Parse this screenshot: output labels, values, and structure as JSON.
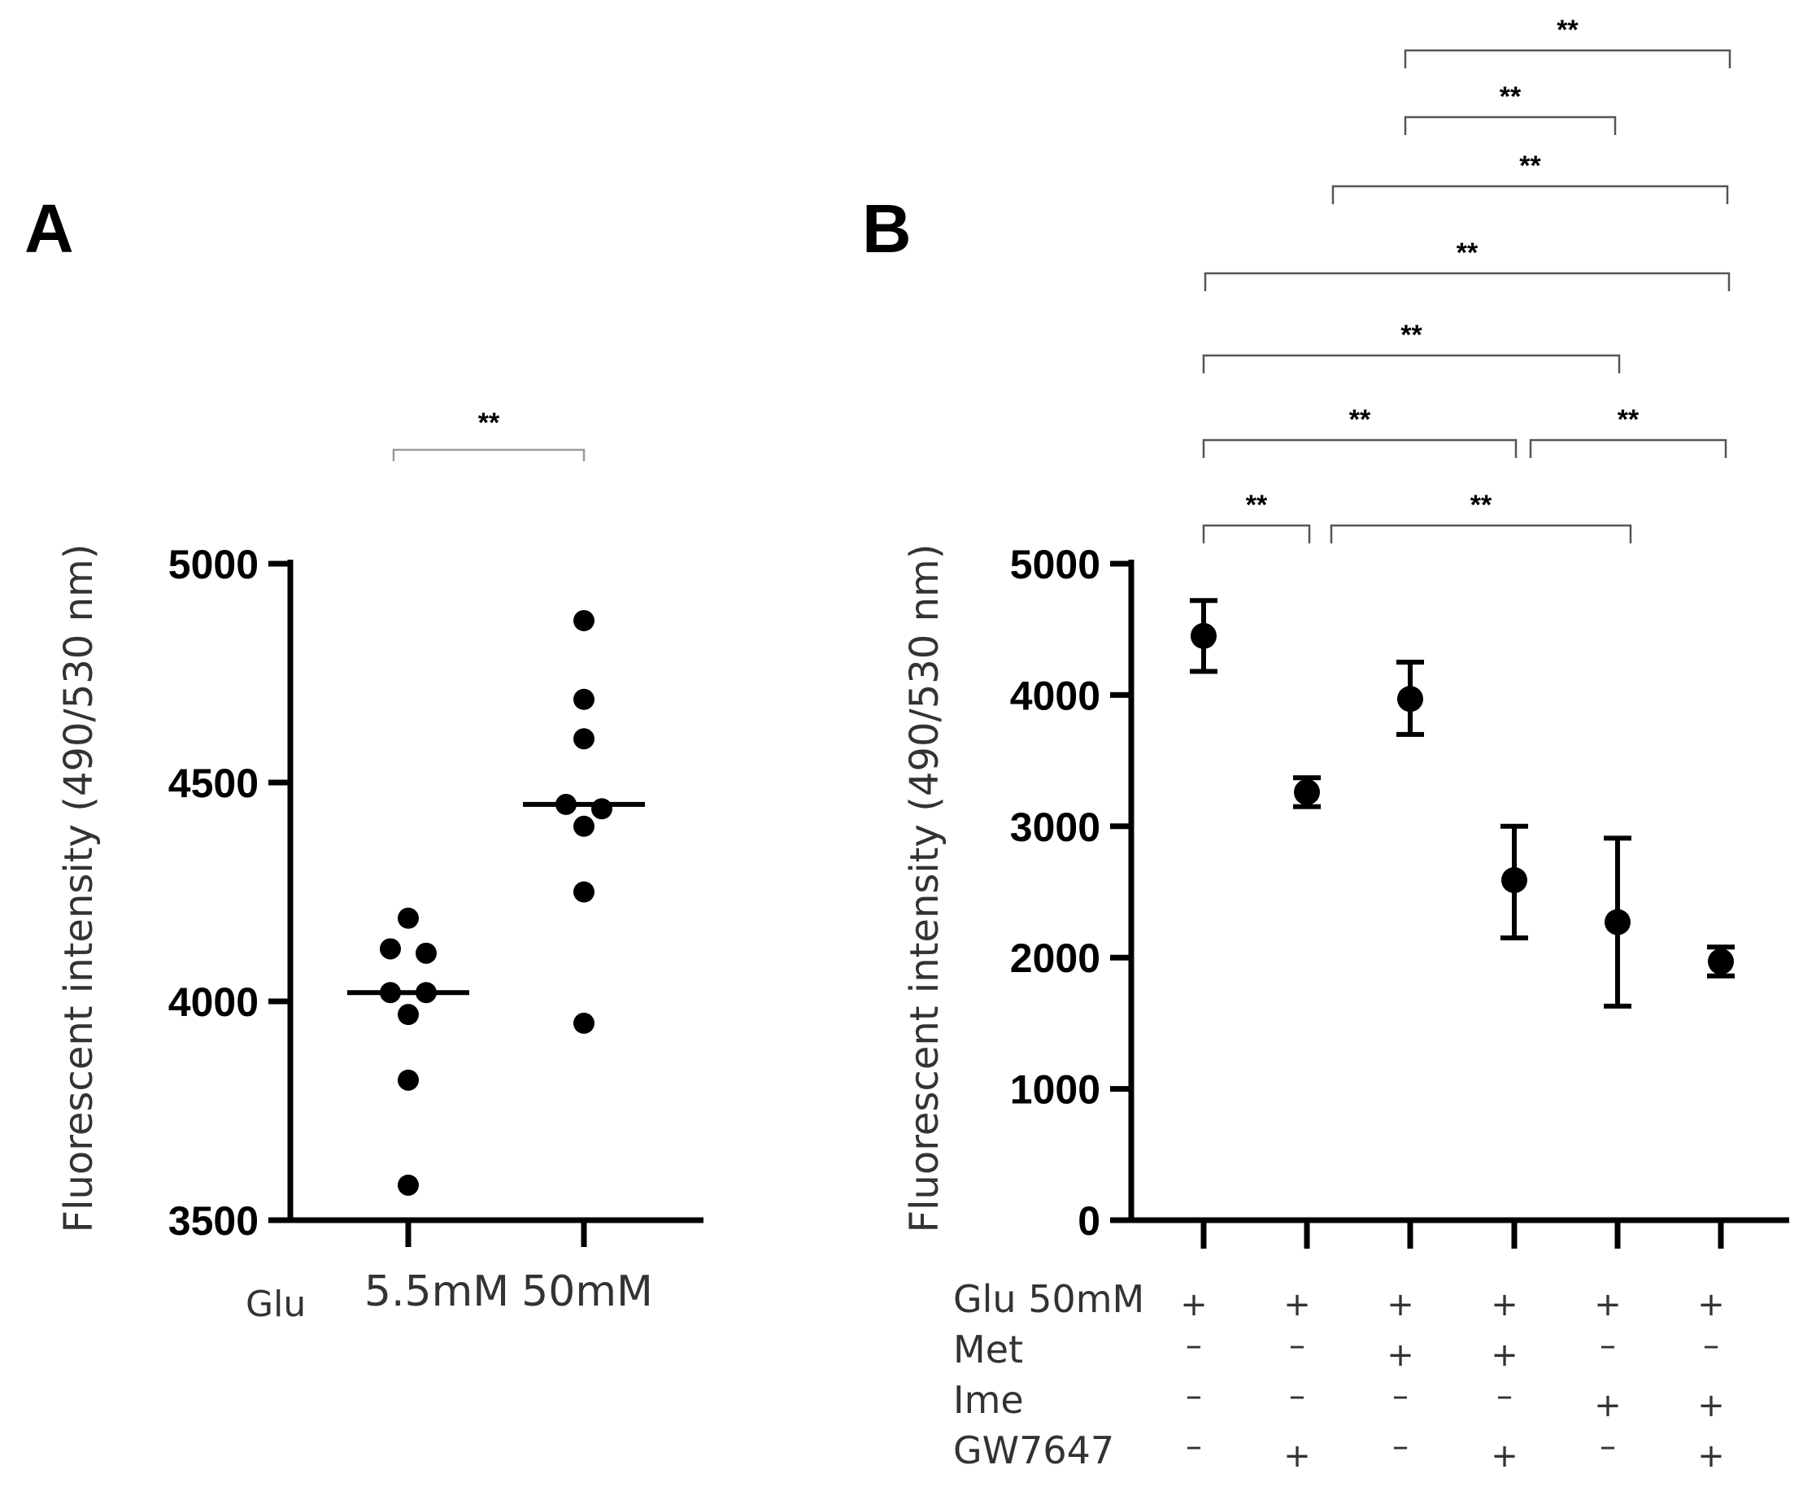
{
  "panel_a_label": "A",
  "panel_b_label": "B",
  "chart_data": [
    {
      "type": "scatter",
      "panel": "A",
      "title": "",
      "ylabel": "Fluorescent intensity (490/530 nm)",
      "xlabel": "Glu",
      "ylim": [
        3500,
        5000
      ],
      "yticks": [
        3500,
        4000,
        4500,
        5000
      ],
      "categories": [
        "5.5mM",
        "50mM"
      ],
      "series": [
        {
          "name": "5.5mM",
          "points": [
            {
              "jitter": 0,
              "value": 4190
            },
            {
              "jitter": -1,
              "value": 4120
            },
            {
              "jitter": 1,
              "value": 4110
            },
            {
              "jitter": -1,
              "value": 4020
            },
            {
              "jitter": 1,
              "value": 4020
            },
            {
              "jitter": 0,
              "value": 3970
            },
            {
              "jitter": 0,
              "value": 3820
            },
            {
              "jitter": 0,
              "value": 3580
            }
          ],
          "median": 4020
        },
        {
          "name": "50mM",
          "points": [
            {
              "jitter": 0,
              "value": 4870
            },
            {
              "jitter": 0,
              "value": 4690
            },
            {
              "jitter": 0,
              "value": 4600
            },
            {
              "jitter": -1,
              "value": 4450
            },
            {
              "jitter": 1,
              "value": 4440
            },
            {
              "jitter": 0,
              "value": 4400
            },
            {
              "jitter": 0,
              "value": 4250
            },
            {
              "jitter": 0,
              "value": 3950
            }
          ],
          "median": 4450
        }
      ],
      "significance": [
        {
          "from": 0,
          "to": 1,
          "label": "**"
        }
      ]
    },
    {
      "type": "errorbar",
      "panel": "B",
      "title": "",
      "ylabel": "Fluorescent intensity (490/530 nm)",
      "ylim": [
        0,
        5000
      ],
      "yticks": [
        0,
        1000,
        2000,
        3000,
        4000,
        5000
      ],
      "groups": [
        {
          "mean": 4450,
          "lower": 4180,
          "upper": 4720
        },
        {
          "mean": 3260,
          "lower": 3150,
          "upper": 3370
        },
        {
          "mean": 3970,
          "lower": 3700,
          "upper": 4250
        },
        {
          "mean": 2590,
          "lower": 2150,
          "upper": 3000
        },
        {
          "mean": 2270,
          "lower": 1630,
          "upper": 2910
        },
        {
          "mean": 1970,
          "lower": 1860,
          "upper": 2080
        }
      ],
      "conditions": [
        {
          "label": "Glu 50mM",
          "values": [
            "+",
            "+",
            "+",
            "+",
            "+",
            "+"
          ]
        },
        {
          "label": "Met",
          "values": [
            "–",
            "–",
            "+",
            "+",
            "–",
            "–"
          ]
        },
        {
          "label": "Ime",
          "values": [
            "–",
            "–",
            "–",
            "–",
            "+",
            "+"
          ]
        },
        {
          "label": "GW7647",
          "values": [
            "–",
            "+",
            "–",
            "+",
            "–",
            "+"
          ]
        }
      ],
      "significance": [
        {
          "from": 2,
          "to": 5,
          "label": "**"
        },
        {
          "from": 2,
          "to": 4,
          "label": "**"
        },
        {
          "from": 1,
          "to": 5,
          "label": "**"
        },
        {
          "from": 0,
          "to": 5,
          "label": "**"
        },
        {
          "from": 0,
          "to": 4,
          "label": "**"
        },
        {
          "from": 0,
          "to": 3,
          "label": "**"
        },
        {
          "from": 3,
          "to": 5,
          "label": "**"
        },
        {
          "from": 0,
          "to": 1,
          "label": "**"
        },
        {
          "from": 1,
          "to": 4,
          "label": "**"
        }
      ]
    }
  ]
}
